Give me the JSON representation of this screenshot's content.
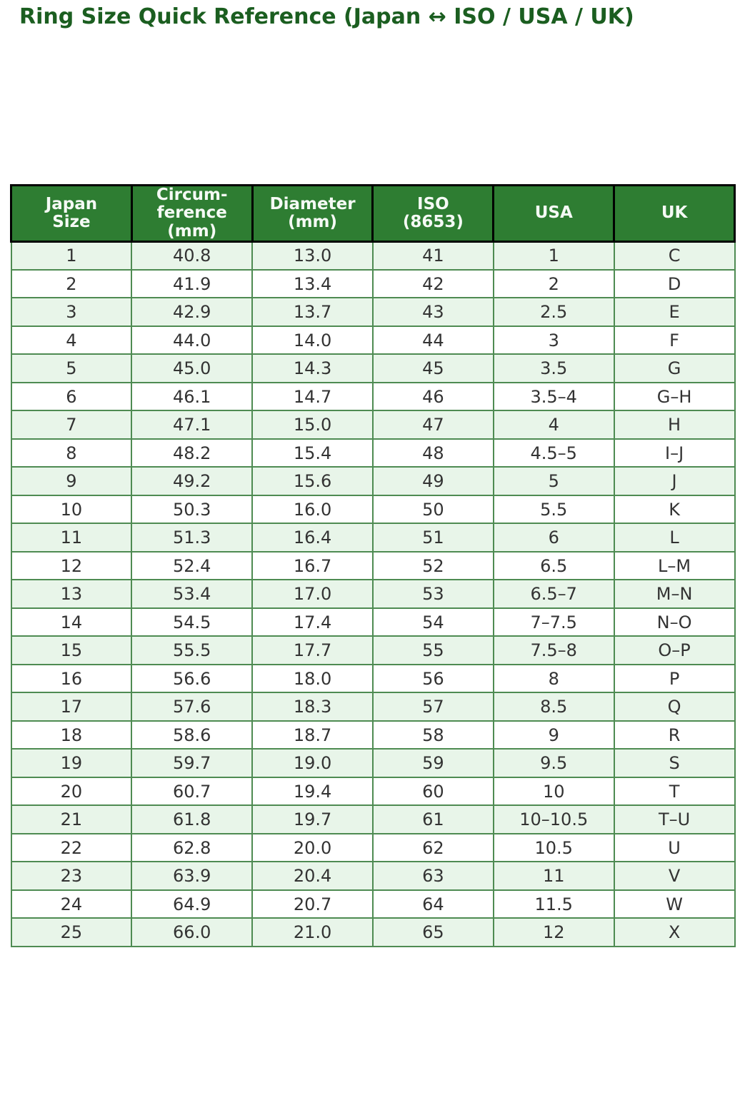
{
  "page": {
    "title": "Ring Size Quick Reference (Japan ↔ ISO / USA / UK)"
  },
  "colors": {
    "title_green": "#1b5e20",
    "header_bg": "#2e7d32",
    "header_text": "#f5faf5",
    "header_border": "#000000",
    "body_border": "#4e8b52",
    "row_alt_bg": "#e8f5e9",
    "row_bg": "#ffffff",
    "body_text": "#333333"
  },
  "table": {
    "headers": [
      "Japan\nSize",
      "Circum-\nference\n(mm)",
      "Diameter\n(mm)",
      "ISO\n(8653)",
      "USA",
      "UK"
    ],
    "rows": [
      [
        "1",
        "40.8",
        "13.0",
        "41",
        "1",
        "C"
      ],
      [
        "2",
        "41.9",
        "13.4",
        "42",
        "2",
        "D"
      ],
      [
        "3",
        "42.9",
        "13.7",
        "43",
        "2.5",
        "E"
      ],
      [
        "4",
        "44.0",
        "14.0",
        "44",
        "3",
        "F"
      ],
      [
        "5",
        "45.0",
        "14.3",
        "45",
        "3.5",
        "G"
      ],
      [
        "6",
        "46.1",
        "14.7",
        "46",
        "3.5–4",
        "G–H"
      ],
      [
        "7",
        "47.1",
        "15.0",
        "47",
        "4",
        "H"
      ],
      [
        "8",
        "48.2",
        "15.4",
        "48",
        "4.5–5",
        "I–J"
      ],
      [
        "9",
        "49.2",
        "15.6",
        "49",
        "5",
        "J"
      ],
      [
        "10",
        "50.3",
        "16.0",
        "50",
        "5.5",
        "K"
      ],
      [
        "11",
        "51.3",
        "16.4",
        "51",
        "6",
        "L"
      ],
      [
        "12",
        "52.4",
        "16.7",
        "52",
        "6.5",
        "L–M"
      ],
      [
        "13",
        "53.4",
        "17.0",
        "53",
        "6.5–7",
        "M–N"
      ],
      [
        "14",
        "54.5",
        "17.4",
        "54",
        "7–7.5",
        "N–O"
      ],
      [
        "15",
        "55.5",
        "17.7",
        "55",
        "7.5–8",
        "O–P"
      ],
      [
        "16",
        "56.6",
        "18.0",
        "56",
        "8",
        "P"
      ],
      [
        "17",
        "57.6",
        "18.3",
        "57",
        "8.5",
        "Q"
      ],
      [
        "18",
        "58.6",
        "18.7",
        "58",
        "9",
        "R"
      ],
      [
        "19",
        "59.7",
        "19.0",
        "59",
        "9.5",
        "S"
      ],
      [
        "20",
        "60.7",
        "19.4",
        "60",
        "10",
        "T"
      ],
      [
        "21",
        "61.8",
        "19.7",
        "61",
        "10–10.5",
        "T–U"
      ],
      [
        "22",
        "62.8",
        "20.0",
        "62",
        "10.5",
        "U"
      ],
      [
        "23",
        "63.9",
        "20.4",
        "63",
        "11",
        "V"
      ],
      [
        "24",
        "64.9",
        "20.7",
        "64",
        "11.5",
        "W"
      ],
      [
        "25",
        "66.0",
        "21.0",
        "65",
        "12",
        "X"
      ]
    ]
  }
}
